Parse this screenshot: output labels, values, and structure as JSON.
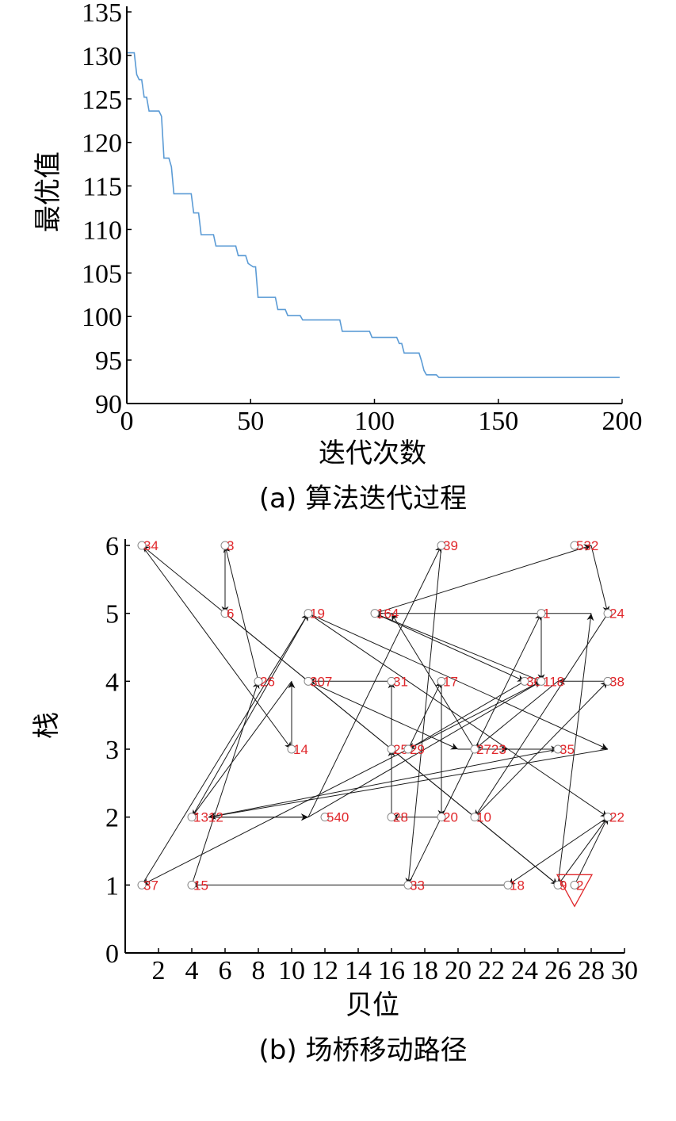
{
  "chart_data": [
    {
      "type": "line",
      "xlabel": "迭代次数",
      "ylabel": "最优值",
      "caption": "(a) 算法迭代过程",
      "xlim": [
        0,
        200
      ],
      "ylim": [
        90,
        135
      ],
      "xticks": [
        "0",
        "50",
        "100",
        "150",
        "200"
      ],
      "yticks": [
        "90",
        "95",
        "100",
        "105",
        "110",
        "115",
        "120",
        "125",
        "130",
        "135"
      ],
      "line_color": "#5b9bd5",
      "series": [
        {
          "x": [
            0,
            3,
            4,
            5,
            6,
            7,
            8,
            9,
            10,
            13,
            14,
            15,
            17,
            18,
            19,
            26,
            27,
            29,
            30,
            35,
            36,
            44,
            45,
            48,
            49,
            51,
            52,
            53,
            54,
            60,
            61,
            64,
            65,
            70,
            71,
            86,
            87,
            98,
            99,
            109,
            110,
            111,
            112,
            118,
            119,
            120,
            121,
            125,
            126,
            199
          ],
          "y": [
            130.3,
            130.3,
            127.8,
            127.2,
            127.2,
            125.2,
            125.2,
            123.6,
            123.6,
            123.6,
            123.0,
            118.2,
            118.2,
            117.2,
            114.1,
            114.1,
            111.9,
            111.9,
            109.4,
            109.4,
            108.1,
            108.1,
            107.0,
            107.0,
            106.1,
            105.7,
            105.7,
            102.2,
            102.2,
            102.2,
            100.8,
            100.8,
            100.1,
            100.1,
            99.6,
            99.6,
            98.3,
            98.3,
            97.6,
            97.6,
            96.9,
            96.9,
            95.8,
            95.8,
            94.9,
            93.8,
            93.3,
            93.3,
            93.0,
            93.0
          ]
        }
      ]
    },
    {
      "type": "scatter",
      "xlabel": "贝位",
      "ylabel": "栈",
      "caption": "(b) 场桥移动路径",
      "xlim": [
        0,
        30
      ],
      "ylim": [
        0,
        6
      ],
      "xticks": [
        "2",
        "4",
        "6",
        "8",
        "10",
        "12",
        "14",
        "16",
        "18",
        "20",
        "22",
        "24",
        "26",
        "28",
        "30"
      ],
      "yticks": [
        "0",
        "1",
        "2",
        "3",
        "4",
        "5",
        "6"
      ],
      "label_color": "#e0262a",
      "start_marker": {
        "x": 27,
        "y": 1,
        "symbol": "triangle-down",
        "color": "#e0262a"
      },
      "nodes": [
        {
          "x": 1,
          "y": 6,
          "label": "34"
        },
        {
          "x": 6,
          "y": 6,
          "label": "3"
        },
        {
          "x": 19,
          "y": 6,
          "label": "39"
        },
        {
          "x": 27,
          "y": 6,
          "label": "532"
        },
        {
          "x": 6,
          "y": 5,
          "label": "6"
        },
        {
          "x": 11,
          "y": 5,
          "label": "19"
        },
        {
          "x": 15,
          "y": 5,
          "label": "164"
        },
        {
          "x": 25,
          "y": 5,
          "label": "1"
        },
        {
          "x": 29,
          "y": 5,
          "label": "24"
        },
        {
          "x": 8,
          "y": 4,
          "label": "26"
        },
        {
          "x": 11,
          "y": 4,
          "label": "307"
        },
        {
          "x": 16,
          "y": 4,
          "label": "31"
        },
        {
          "x": 19,
          "y": 4,
          "label": "17"
        },
        {
          "x": 24,
          "y": 4,
          "label": "36"
        },
        {
          "x": 25,
          "y": 4,
          "label": "118"
        },
        {
          "x": 29,
          "y": 4,
          "label": "38"
        },
        {
          "x": 10,
          "y": 3,
          "label": "14"
        },
        {
          "x": 16,
          "y": 3,
          "label": "25"
        },
        {
          "x": 17,
          "y": 3,
          "label": "29"
        },
        {
          "x": 21,
          "y": 3,
          "label": "2723"
        },
        {
          "x": 26,
          "y": 3,
          "label": "35"
        },
        {
          "x": 4,
          "y": 2,
          "label": "1312"
        },
        {
          "x": 12,
          "y": 2,
          "label": "540"
        },
        {
          "x": 16,
          "y": 2,
          "label": "28"
        },
        {
          "x": 19,
          "y": 2,
          "label": "20"
        },
        {
          "x": 21,
          "y": 2,
          "label": "10"
        },
        {
          "x": 29,
          "y": 2,
          "label": "22"
        },
        {
          "x": 1,
          "y": 1,
          "label": "37"
        },
        {
          "x": 4,
          "y": 1,
          "label": "15"
        },
        {
          "x": 17,
          "y": 1,
          "label": "33"
        },
        {
          "x": 23,
          "y": 1,
          "label": "18"
        },
        {
          "x": 26,
          "y": 1,
          "label": "9"
        },
        {
          "x": 27,
          "y": 1,
          "label": "2"
        }
      ],
      "path": [
        [
          27,
          1
        ],
        [
          29,
          2
        ],
        [
          23,
          1
        ],
        [
          4,
          1
        ],
        [
          8,
          4
        ],
        [
          6,
          6
        ],
        [
          6,
          5
        ],
        [
          26,
          1
        ],
        [
          1,
          6
        ],
        [
          10,
          3
        ],
        [
          10,
          4
        ],
        [
          4,
          2
        ],
        [
          11,
          5
        ],
        [
          29,
          3
        ],
        [
          5,
          2
        ],
        [
          11,
          2
        ],
        [
          19,
          6
        ],
        [
          17,
          1
        ],
        [
          25,
          5
        ],
        [
          25,
          4
        ],
        [
          15,
          5
        ],
        [
          24,
          4
        ],
        [
          17,
          3
        ],
        [
          19,
          4
        ],
        [
          19,
          2
        ],
        [
          16,
          2
        ],
        [
          16,
          3
        ],
        [
          16,
          4
        ],
        [
          11,
          4
        ],
        [
          20,
          3
        ],
        [
          23,
          3
        ],
        [
          26,
          3
        ],
        [
          5,
          2
        ],
        [
          11,
          2
        ],
        [
          25,
          4
        ],
        [
          1,
          1
        ],
        [
          11,
          5
        ],
        [
          29,
          2
        ],
        [
          26,
          1
        ],
        [
          28,
          5
        ],
        [
          15,
          5
        ],
        [
          28,
          6
        ],
        [
          29,
          5
        ],
        [
          21,
          2
        ],
        [
          29,
          4
        ],
        [
          26,
          4
        ],
        [
          21,
          3
        ],
        [
          16,
          5
        ]
      ]
    }
  ]
}
